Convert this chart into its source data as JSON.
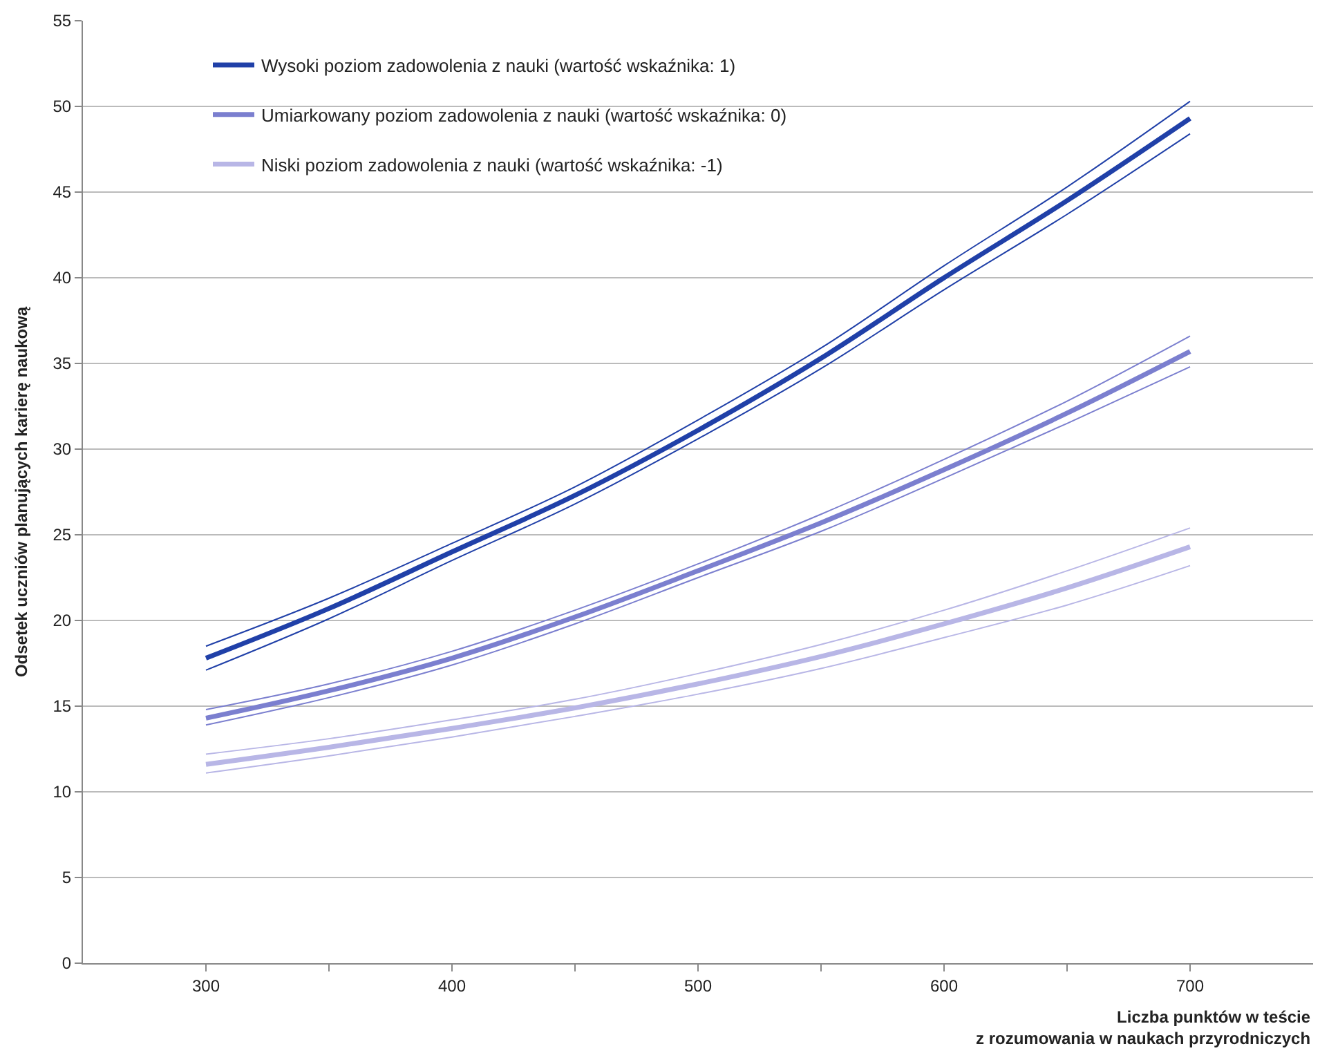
{
  "chart_data": {
    "type": "line",
    "xlabel": "Liczba punktów w teście\nz rozumowania w naukach przyrodniczych",
    "ylabel": "Odsetek uczniów planujących karierę naukową",
    "x": [
      300,
      350,
      400,
      450,
      500,
      550,
      600,
      650,
      700
    ],
    "series": [
      {
        "name": "Wysoki poziom zadowolenia z nauki (wartość wskaźnika: 1)",
        "color": "#2040a8",
        "values": [
          17.8,
          20.7,
          24.0,
          27.3,
          31.1,
          35.3,
          40.0,
          44.5,
          49.3
        ]
      },
      {
        "color": "#2040a8",
        "values": [
          17.1,
          20.1,
          23.5,
          26.8,
          30.6,
          34.7,
          39.3,
          43.7,
          48.4
        ]
      },
      {
        "color": "#2040a8",
        "values": [
          18.5,
          21.3,
          24.5,
          27.8,
          31.7,
          35.9,
          40.7,
          45.3,
          50.3
        ]
      },
      {
        "name": "Umiarkowany poziom zadowolenia z nauki (wartość wskaźnika: 0)",
        "color": "#7b7fcf",
        "values": [
          14.3,
          15.9,
          17.8,
          20.2,
          22.9,
          25.7,
          28.8,
          32.1,
          35.7
        ]
      },
      {
        "color": "#7b7fcf",
        "values": [
          13.9,
          15.5,
          17.4,
          19.8,
          22.5,
          25.2,
          28.3,
          31.5,
          34.8
        ]
      },
      {
        "color": "#7b7fcf",
        "values": [
          14.8,
          16.3,
          18.2,
          20.6,
          23.3,
          26.2,
          29.4,
          32.8,
          36.6
        ]
      },
      {
        "name": "Niski poziom zadowolenia z nauki (wartość wskaźnika: -1)",
        "color": "#b8b6e6",
        "values": [
          11.6,
          12.6,
          13.7,
          14.9,
          16.3,
          17.9,
          19.8,
          21.9,
          24.3
        ]
      },
      {
        "color": "#b8b6e6",
        "values": [
          11.1,
          12.1,
          13.2,
          14.4,
          15.7,
          17.2,
          19.0,
          20.9,
          23.2
        ]
      },
      {
        "color": "#b8b6e6",
        "values": [
          12.2,
          13.1,
          14.2,
          15.4,
          16.9,
          18.6,
          20.6,
          22.9,
          25.4
        ]
      }
    ],
    "xlim": [
      250,
      750
    ],
    "xticks": [
      300,
      {
        "value": 350,
        "label": null
      },
      400,
      {
        "value": 450,
        "label": null
      },
      500,
      {
        "value": 550,
        "label": null
      },
      600,
      {
        "value": 650,
        "label": null
      },
      700
    ],
    "ylim": [
      0,
      55
    ],
    "yticks": [
      0,
      5,
      10,
      15,
      20,
      25,
      30,
      35,
      40,
      45,
      50,
      55
    ],
    "grid": "y",
    "legend": "top left",
    "marker": "none",
    "line_style": "solid"
  }
}
